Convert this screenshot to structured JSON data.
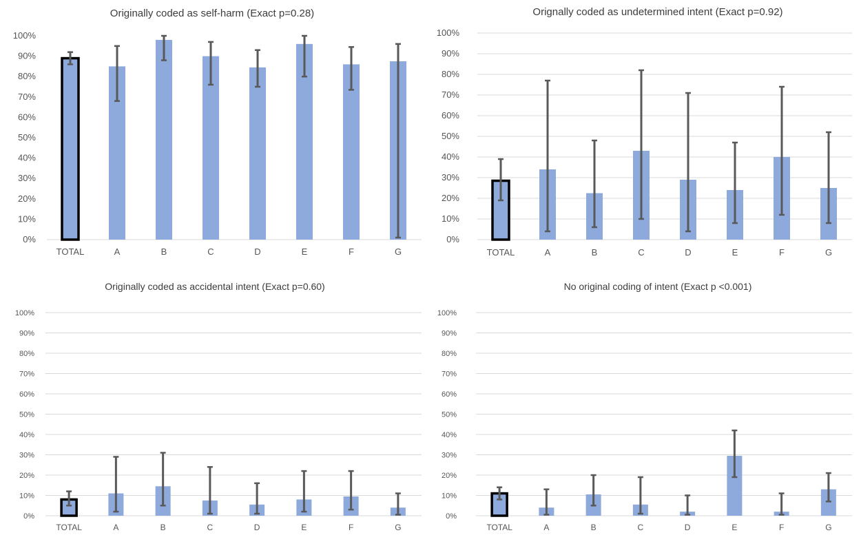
{
  "colors": {
    "bar": "#8ea9db",
    "total_outline": "#000000",
    "error_bar": "#595959",
    "gridline": "#d9d9d9"
  },
  "chart_data": [
    {
      "type": "bar",
      "title": "Originally coded as self-harm (Exact p=0.28)",
      "categories": [
        "TOTAL",
        "A",
        "B",
        "C",
        "D",
        "E",
        "F",
        "G"
      ],
      "values": [
        89,
        85,
        98,
        90,
        84.5,
        96,
        86,
        87.5
      ],
      "error_low": [
        86,
        68,
        88,
        76,
        75,
        80,
        73.5,
        1
      ],
      "error_high": [
        92,
        95,
        100,
        97,
        93,
        100,
        94.5,
        96
      ],
      "ylim": [
        0,
        100
      ],
      "yticks": [
        "0%",
        "10%",
        "20%",
        "30%",
        "40%",
        "50%",
        "60%",
        "70%",
        "80%",
        "90%",
        "100%"
      ],
      "grid": false,
      "xlabel": "",
      "ylabel": ""
    },
    {
      "type": "bar",
      "title": "Orignally coded as undetermined  intent  (Exact p=0.92)",
      "categories": [
        "TOTAL",
        "A",
        "B",
        "C",
        "D",
        "E",
        "F",
        "G"
      ],
      "values": [
        28.5,
        34,
        22.5,
        43,
        29,
        24,
        40,
        25
      ],
      "error_low": [
        19,
        4,
        6,
        10,
        4,
        8,
        12,
        8
      ],
      "error_high": [
        39,
        77,
        48,
        82,
        71,
        47,
        74,
        52
      ],
      "ylim": [
        0,
        100
      ],
      "yticks": [
        "0%",
        "10%",
        "20%",
        "30%",
        "40%",
        "50%",
        "60%",
        "70%",
        "80%",
        "90%",
        "100%"
      ],
      "grid": true,
      "xlabel": "",
      "ylabel": ""
    },
    {
      "type": "bar",
      "title": "Originally coded as accidental intent (Exact p=0.60)",
      "categories": [
        "TOTAL",
        "A",
        "B",
        "C",
        "D",
        "E",
        "F",
        "G"
      ],
      "values": [
        8,
        11,
        14.5,
        7.5,
        5.5,
        8,
        9.5,
        4
      ],
      "error_low": [
        5,
        2,
        5,
        1,
        1,
        2,
        3,
        0.5
      ],
      "error_high": [
        12,
        29,
        31,
        24,
        16,
        22,
        22,
        11
      ],
      "ylim": [
        0,
        100
      ],
      "yticks": [
        "0%",
        "10%",
        "20%",
        "30%",
        "40%",
        "50%",
        "60%",
        "70%",
        "80%",
        "90%",
        "100%"
      ],
      "grid": true,
      "xlabel": "",
      "ylabel": ""
    },
    {
      "type": "bar",
      "title": "No original coding of intent (Exact p <0.001)",
      "categories": [
        "TOTAL",
        "A",
        "B",
        "C",
        "D",
        "E",
        "F",
        "G"
      ],
      "values": [
        11,
        4,
        10.5,
        5.5,
        2,
        29.5,
        2,
        13
      ],
      "error_low": [
        8,
        0.5,
        5,
        1,
        0.5,
        19,
        0.5,
        7
      ],
      "error_high": [
        14,
        13,
        20,
        19,
        10,
        42,
        11,
        21
      ],
      "ylim": [
        0,
        100
      ],
      "yticks": [
        "0%",
        "10%",
        "20%",
        "30%",
        "40%",
        "50%",
        "60%",
        "70%",
        "80%",
        "90%",
        "100%"
      ],
      "grid": true,
      "xlabel": "",
      "ylabel": ""
    }
  ]
}
